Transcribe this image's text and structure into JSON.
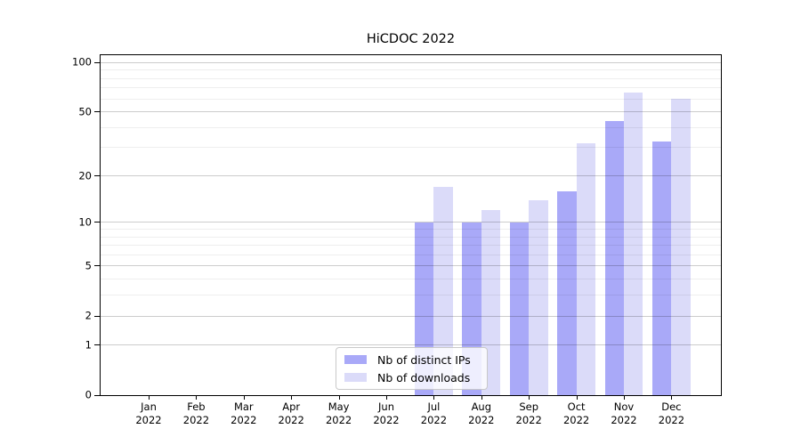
{
  "figure": {
    "background": "#ffffff"
  },
  "chart_data": {
    "type": "bar",
    "title": "HiCDOC 2022",
    "categories": [
      {
        "month": "Jan",
        "year": "2022"
      },
      {
        "month": "Feb",
        "year": "2022"
      },
      {
        "month": "Mar",
        "year": "2022"
      },
      {
        "month": "Apr",
        "year": "2022"
      },
      {
        "month": "May",
        "year": "2022"
      },
      {
        "month": "Jun",
        "year": "2022"
      },
      {
        "month": "Jul",
        "year": "2022"
      },
      {
        "month": "Aug",
        "year": "2022"
      },
      {
        "month": "Sep",
        "year": "2022"
      },
      {
        "month": "Oct",
        "year": "2022"
      },
      {
        "month": "Nov",
        "year": "2022"
      },
      {
        "month": "Dec",
        "year": "2022"
      }
    ],
    "series": [
      {
        "name": "Nb of distinct IPs",
        "color": "#a9a9f8",
        "values": [
          0,
          0,
          0,
          0,
          0,
          0,
          10,
          10,
          10,
          16,
          44,
          33
        ]
      },
      {
        "name": "Nb of downloads",
        "color": "#dbdbf9",
        "values": [
          0,
          0,
          0,
          0,
          0,
          0,
          17,
          12,
          14,
          32,
          66,
          60
        ]
      }
    ],
    "yscale": "log1p",
    "ylim": [
      0,
      111
    ],
    "y_major_ticks": [
      {
        "value": 0,
        "label": "0"
      },
      {
        "value": 1,
        "label": "1"
      },
      {
        "value": 2,
        "label": "2"
      },
      {
        "value": 5,
        "label": "5"
      },
      {
        "value": 10,
        "label": "10"
      },
      {
        "value": 20,
        "label": "20"
      },
      {
        "value": 50,
        "label": "50"
      },
      {
        "value": 100,
        "label": "100"
      }
    ],
    "y_minor_ticks": [
      3,
      4,
      6,
      7,
      8,
      9,
      30,
      40,
      60,
      70,
      80,
      90
    ],
    "grid": "on",
    "legend_position": "lower-center"
  }
}
